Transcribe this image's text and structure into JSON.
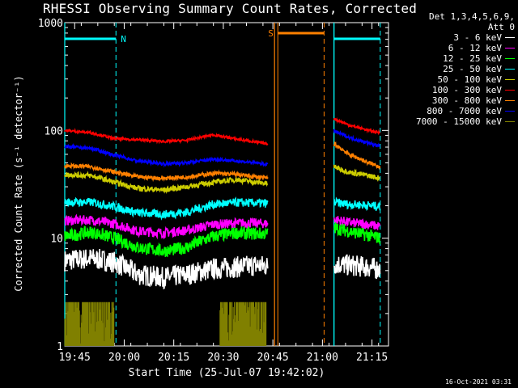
{
  "title": "RHESSI Observing Summary Count Rates, Corrected",
  "footer": "16-Oct-2021 03:31",
  "legend": {
    "header_line1": "Det 1,3,4,5,6,9,",
    "header_line2": "Att 0"
  },
  "chart_data": {
    "type": "line",
    "title": "RHESSI Observing Summary Count Rates, Corrected",
    "xlabel": "Start Time (25-Jul-07 19:42:02)",
    "ylabel": "Corrected Count Rate (s⁻¹ detector⁻¹)",
    "y_scale": "log",
    "ylim": [
      1,
      1000
    ],
    "xlim_minutes": [
      0,
      98
    ],
    "x_tick_labels": [
      "19:45",
      "20:00",
      "20:15",
      "20:30",
      "20:45",
      "21:00",
      "21:15"
    ],
    "x_tick_minutes": [
      3,
      18,
      33,
      48,
      63,
      78,
      93
    ],
    "y_tick_labels": [
      "1",
      "10",
      "100",
      "1000"
    ],
    "y_tick_values": [
      1,
      10,
      100,
      1000
    ],
    "series": [
      {
        "name": "3 - 6 keV",
        "color": "#ffffff",
        "segA": [
          [
            0,
            6.2
          ],
          [
            8,
            6.5
          ],
          [
            15,
            6.0
          ],
          [
            22,
            4.6
          ],
          [
            30,
            4.3
          ],
          [
            37,
            4.6
          ],
          [
            45,
            5.2
          ],
          [
            52,
            5.4
          ],
          [
            58,
            5.6
          ],
          [
            61.5,
            5.5
          ]
        ],
        "segB": [
          [
            81.5,
            5.8
          ],
          [
            86,
            5.6
          ],
          [
            92,
            5.4
          ],
          [
            95.5,
            5.1
          ]
        ],
        "noise": 0.1
      },
      {
        "name": "6 - 12 keV",
        "color": "#ff00ff",
        "segA": [
          [
            0,
            14.5
          ],
          [
            8,
            14.8
          ],
          [
            15,
            13.6
          ],
          [
            22,
            11.6
          ],
          [
            30,
            11.2
          ],
          [
            37,
            11.8
          ],
          [
            45,
            13.4
          ],
          [
            52,
            13.8
          ],
          [
            58,
            13.8
          ],
          [
            61.5,
            13.6
          ]
        ],
        "segB": [
          [
            81.5,
            15.0
          ],
          [
            86,
            14.0
          ],
          [
            92,
            13.4
          ],
          [
            95.5,
            12.8
          ]
        ],
        "noise": 0.045
      },
      {
        "name": "12 - 25 keV",
        "color": "#00ff00",
        "segA": [
          [
            0,
            10.4
          ],
          [
            8,
            11.4
          ],
          [
            15,
            10.0
          ],
          [
            22,
            8.2
          ],
          [
            30,
            7.6
          ],
          [
            37,
            8.2
          ],
          [
            45,
            10.4
          ],
          [
            52,
            11.2
          ],
          [
            58,
            11.0
          ],
          [
            61.5,
            11.0
          ]
        ],
        "segB": [
          [
            81.5,
            12.5
          ],
          [
            86,
            11.6
          ],
          [
            92,
            10.6
          ],
          [
            95.5,
            10.0
          ]
        ],
        "noise": 0.06
      },
      {
        "name": "25 - 50 keV",
        "color": "#00ffff",
        "segA": [
          [
            0,
            21.5
          ],
          [
            8,
            21.6
          ],
          [
            15,
            19.6
          ],
          [
            22,
            17.2
          ],
          [
            30,
            16.6
          ],
          [
            37,
            17.4
          ],
          [
            45,
            20.6
          ],
          [
            52,
            21.4
          ],
          [
            58,
            21.2
          ],
          [
            61.5,
            21.0
          ]
        ],
        "segB": [
          [
            81.5,
            21.5
          ],
          [
            86,
            20.6
          ],
          [
            92,
            20.2
          ],
          [
            95.5,
            19.6
          ]
        ],
        "noise": 0.04
      },
      {
        "name": "50 - 100 keV",
        "color": "#cccc00",
        "segA": [
          [
            0,
            39
          ],
          [
            8,
            38
          ],
          [
            15,
            33
          ],
          [
            22,
            29
          ],
          [
            30,
            28
          ],
          [
            37,
            30
          ],
          [
            45,
            33
          ],
          [
            52,
            35
          ],
          [
            58,
            33
          ],
          [
            61.5,
            32
          ]
        ],
        "segB": [
          [
            81.5,
            46
          ],
          [
            86,
            41
          ],
          [
            92,
            38
          ],
          [
            95.5,
            36
          ]
        ],
        "noise": 0.025
      },
      {
        "name": "100 - 300 keV",
        "color": "#ff0000",
        "segA": [
          [
            0,
            100
          ],
          [
            8,
            95
          ],
          [
            15,
            84
          ],
          [
            22,
            82
          ],
          [
            30,
            79
          ],
          [
            37,
            81
          ],
          [
            45,
            91
          ],
          [
            52,
            83
          ],
          [
            58,
            78
          ],
          [
            61.5,
            75
          ]
        ],
        "segB": [
          [
            81.5,
            128
          ],
          [
            86,
            112
          ],
          [
            92,
            100
          ],
          [
            95.5,
            95
          ]
        ],
        "noise": 0.012
      },
      {
        "name": "300 - 800 keV",
        "color": "#ff8000",
        "segA": [
          [
            0,
            47
          ],
          [
            8,
            46
          ],
          [
            15,
            41
          ],
          [
            22,
            37
          ],
          [
            30,
            36
          ],
          [
            37,
            37
          ],
          [
            45,
            40
          ],
          [
            52,
            39
          ],
          [
            58,
            37
          ],
          [
            61.5,
            36
          ]
        ],
        "segB": [
          [
            81.5,
            75
          ],
          [
            86,
            60
          ],
          [
            92,
            50
          ],
          [
            95.5,
            46
          ]
        ],
        "noise": 0.02
      },
      {
        "name": "800 - 7000 keV",
        "color": "#0000ff",
        "segA": [
          [
            0,
            71
          ],
          [
            8,
            68
          ],
          [
            15,
            59
          ],
          [
            22,
            52
          ],
          [
            30,
            49
          ],
          [
            37,
            50
          ],
          [
            45,
            54
          ],
          [
            52,
            52
          ],
          [
            58,
            50
          ],
          [
            61.5,
            48
          ]
        ],
        "segB": [
          [
            81.5,
            99
          ],
          [
            86,
            86
          ],
          [
            92,
            76
          ],
          [
            95.5,
            71
          ]
        ],
        "noise": 0.015
      },
      {
        "name": "7000 - 15000 keV",
        "color": "#808000",
        "segA": [
          [
            0,
            2.6
          ],
          [
            15,
            2.6
          ]
        ],
        "segB": [
          [
            47,
            2.6
          ],
          [
            61,
            2.6
          ]
        ],
        "noise": 0
      }
    ],
    "flag_bars": [
      {
        "label": "N",
        "color": "#00ffff",
        "start_min": 0,
        "end_min": 15.5,
        "bound_min": [
          0,
          15.5
        ],
        "line_min": [
          0,
          81.5,
          95.5
        ]
      },
      {
        "label": "S",
        "color": "#ff8000",
        "start_min": 64.5,
        "end_min": 78.5,
        "bound_min": [
          64.5,
          78.5
        ],
        "line_min": [
          63.5
        ]
      },
      {
        "label": "",
        "color": "#00ffff",
        "start_min": 81.5,
        "end_min": 95.5,
        "bound_min": [
          81.5,
          95.5
        ],
        "line_min": []
      }
    ]
  }
}
